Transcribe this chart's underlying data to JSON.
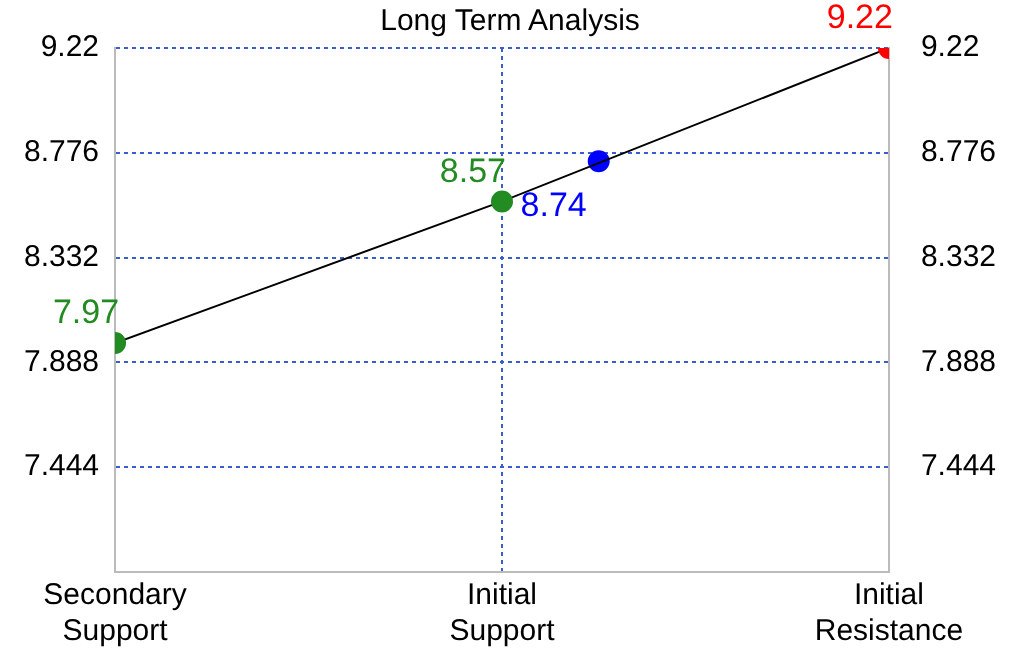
{
  "chart_data": {
    "type": "line",
    "title": "Long Term Analysis",
    "categories": [
      "Secondary Support",
      null,
      null,
      null,
      "Initial Support",
      null,
      null,
      null,
      "Initial Resistance"
    ],
    "ylim": [
      7.0,
      9.22
    ],
    "yticks": [
      7.444,
      7.888,
      8.332,
      8.776,
      9.22
    ],
    "y2lim": [
      7.0,
      9.22
    ],
    "y2ticks": [
      7.444,
      7.888,
      8.332,
      8.776,
      9.22
    ],
    "grid": true,
    "legend": false,
    "marker": "circle",
    "line_style": "solid",
    "data_labels": true,
    "series": [
      {
        "color": "#000000",
        "colors": [
          "#228b22",
          null,
          null,
          null,
          "#228b22",
          null,
          null,
          null,
          "#ff0000"
        ],
        "values": [
          7.97,
          null,
          null,
          null,
          8.57,
          null,
          null,
          null,
          9.22
        ]
      },
      {
        "type": "scatter",
        "color": "#0000ff",
        "values": [
          null,
          null,
          null,
          null,
          null,
          8.74,
          null,
          null,
          null
        ]
      }
    ]
  }
}
